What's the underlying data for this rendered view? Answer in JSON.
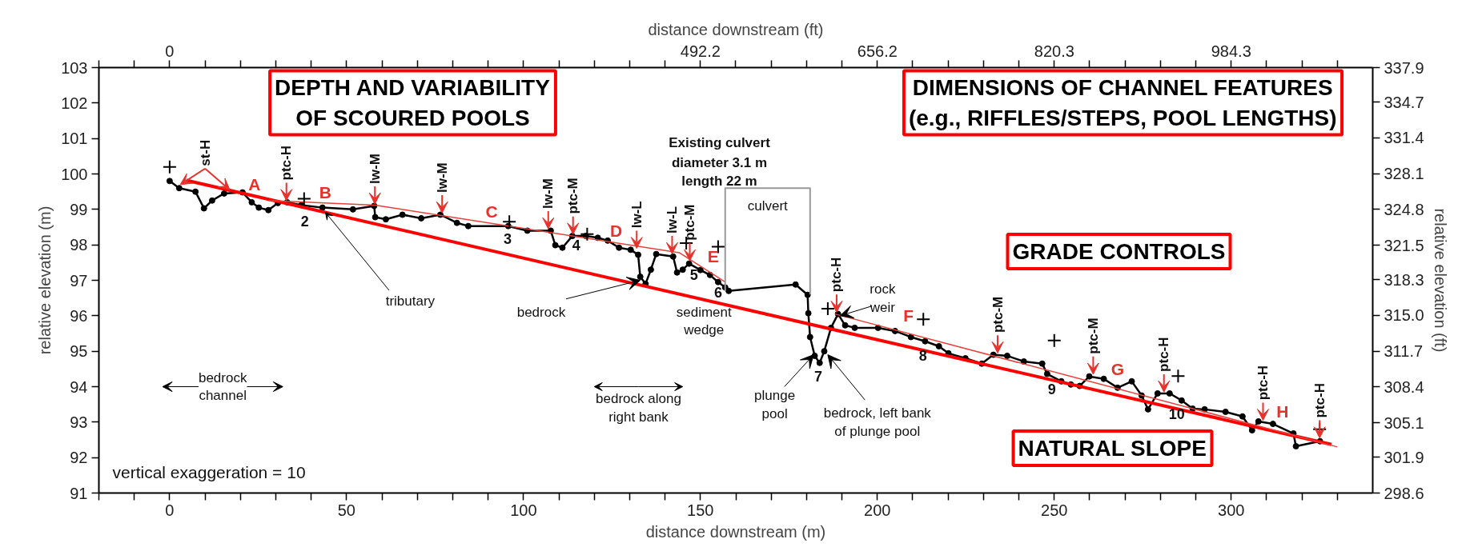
{
  "chart_data": {
    "type": "line",
    "xlabel": "distance downstream (m)",
    "x2label": "distance downstream (ft)",
    "ylabel": "relative elevation (m)",
    "y2label": "relative elevation (ft)",
    "xlim": [
      -20,
      340
    ],
    "ylim": [
      91,
      103
    ],
    "x2lim": [
      -65.6,
      1115.5
    ],
    "y2lim": [
      298.6,
      337.9
    ],
    "xticks": [
      {
        "value": -20,
        "label": null
      },
      {
        "value": -10,
        "label": null
      },
      0,
      {
        "value": 10,
        "label": null
      },
      {
        "value": 20,
        "label": null
      },
      {
        "value": 30,
        "label": null
      },
      {
        "value": 40,
        "label": null
      },
      50,
      {
        "value": 60,
        "label": null
      },
      {
        "value": 70,
        "label": null
      },
      {
        "value": 80,
        "label": null
      },
      {
        "value": 90,
        "label": null
      },
      100,
      {
        "value": 110,
        "label": null
      },
      {
        "value": 120,
        "label": null
      },
      {
        "value": 130,
        "label": null
      },
      {
        "value": 140,
        "label": null
      },
      150,
      {
        "value": 160,
        "label": null
      },
      {
        "value": 170,
        "label": null
      },
      {
        "value": 180,
        "label": null
      },
      {
        "value": 190,
        "label": null
      },
      200,
      {
        "value": 210,
        "label": null
      },
      {
        "value": 220,
        "label": null
      },
      {
        "value": 230,
        "label": null
      },
      {
        "value": 240,
        "label": null
      },
      250,
      {
        "value": 260,
        "label": null
      },
      {
        "value": 270,
        "label": null
      },
      {
        "value": 280,
        "label": null
      },
      {
        "value": 290,
        "label": null
      },
      300,
      {
        "value": 310,
        "label": null
      },
      {
        "value": 320,
        "label": null
      },
      {
        "value": 330,
        "label": null
      }
    ],
    "x2ticks": [
      {
        "value": -65.6,
        "label": null
      },
      {
        "value": -32.8,
        "label": null
      },
      0,
      {
        "value": 32.8,
        "label": null
      },
      {
        "value": 65.6,
        "label": null
      },
      {
        "value": 98.4,
        "label": null
      },
      {
        "value": 131.2,
        "label": null
      },
      {
        "value": 164.0,
        "label": null
      },
      {
        "value": 196.9,
        "label": null
      },
      {
        "value": 229.7,
        "label": null
      },
      {
        "value": 262.5,
        "label": null
      },
      {
        "value": 295.3,
        "label": null
      },
      {
        "value": 328.1,
        "label": null
      },
      {
        "value": 360.9,
        "label": null
      },
      {
        "value": 393.7,
        "label": null
      },
      {
        "value": 426.5,
        "label": null
      },
      {
        "value": 459.3,
        "label": null
      },
      492.2,
      {
        "value": 524.9,
        "label": null
      },
      {
        "value": 557.7,
        "label": null
      },
      {
        "value": 590.6,
        "label": null
      },
      {
        "value": 623.4,
        "label": null
      },
      656.2,
      {
        "value": 689.0,
        "label": null
      },
      {
        "value": 721.8,
        "label": null
      },
      {
        "value": 754.6,
        "label": null
      },
      {
        "value": 787.4,
        "label": null
      },
      820.3,
      {
        "value": 853.0,
        "label": null
      },
      {
        "value": 885.8,
        "label": null
      },
      {
        "value": 918.6,
        "label": null
      },
      {
        "value": 951.4,
        "label": null
      },
      984.3,
      {
        "value": 1017.1,
        "label": null
      },
      {
        "value": 1049.9,
        "label": null
      },
      {
        "value": 1082.7,
        "label": null
      }
    ],
    "yticks": [
      91,
      92,
      93,
      94,
      95,
      96,
      97,
      98,
      99,
      100,
      101,
      102,
      103
    ],
    "y2ticks": [
      298.6,
      301.9,
      305.1,
      308.4,
      311.7,
      {
        "value": 315,
        "label": "315.0"
      },
      318.3,
      321.5,
      324.8,
      328.1,
      331.4,
      334.7,
      337.9
    ],
    "grid": false,
    "series": [
      {
        "color": "#000000",
        "marker": "circle",
        "x": [
          0,
          2.7,
          7.3,
          9.7,
          12,
          15.4,
          20.6,
          23.2,
          25.2,
          27.9,
          30.6,
          33.2,
          37.2,
          43.2,
          51.8,
          57.8,
          58.1,
          61.1,
          65.8,
          71.1,
          76.5,
          81.2,
          84.4,
          95.7,
          101.1,
          107.7,
          109,
          111,
          113.8,
          117.6,
          121,
          123.8,
          127,
          130.3,
          132.4,
          133,
          134.5,
          136,
          137.5,
          142.3,
          143.4,
          145,
          146.8,
          150,
          152.7,
          155,
          157,
          158,
          176.9,
          180.3,
          180.5,
          181,
          182.3,
          183.7,
          185,
          186.9,
          188.9,
          190.9,
          193.6,
          200.2,
          205,
          209.5,
          213.5,
          217.4,
          220.1,
          224.9,
          229.5,
          232.8,
          236.7,
          241.4,
          246.6,
          248,
          252,
          254.7,
          257.2,
          259.9,
          264,
          267.9,
          271.9,
          274.7,
          276.5,
          279.2,
          282.6,
          286,
          289.1,
          292.5,
          298.4,
          303.2,
          305.9,
          307.7,
          311.8,
          317.6,
          318.3,
          325.1
        ],
        "values": [
          99.8,
          99.6,
          99.5,
          99.03,
          99.25,
          99.45,
          99.48,
          99.2,
          99.05,
          98.98,
          99.18,
          99.2,
          99.12,
          99.05,
          99.0,
          99.1,
          98.78,
          98.72,
          98.85,
          98.75,
          98.85,
          98.62,
          98.53,
          98.53,
          98.4,
          98.4,
          97.99,
          97.92,
          98.25,
          98.25,
          98.2,
          98.12,
          97.92,
          97.86,
          97.72,
          97.1,
          96.9,
          97.3,
          97.74,
          97.67,
          97.22,
          97.3,
          97.47,
          97.29,
          97.15,
          96.95,
          96.8,
          96.7,
          96.88,
          96.59,
          96.07,
          95.4,
          94.87,
          94.67,
          95.0,
          95.66,
          96.05,
          95.73,
          95.66,
          95.66,
          95.57,
          95.4,
          95.28,
          95.14,
          94.94,
          94.8,
          94.65,
          94.9,
          94.87,
          94.71,
          94.65,
          94.36,
          94.15,
          94.06,
          94.02,
          94.29,
          94.22,
          93.97,
          94.15,
          93.75,
          93.36,
          93.81,
          93.81,
          93.61,
          93.38,
          93.36,
          93.29,
          93.16,
          92.77,
          93.02,
          92.95,
          92.68,
          92.32,
          92.46
        ]
      },
      {
        "color": "#ff0000",
        "x": [
          4.7,
          328.3
        ],
        "values": [
          99.82,
          92.37
        ]
      },
      {
        "color": "#e8403a",
        "x": [
          28,
          58,
          144,
          157,
          170,
          188,
          330
        ],
        "values": [
          99.25,
          99.12,
          97.78,
          96.95,
          null,
          96.05,
          92.3
        ]
      },
      {
        "color": "#999999",
        "x": [
          157,
          157,
          181,
          181
        ],
        "values": [
          96.7,
          99.6,
          99.6,
          96.6
        ]
      },
      {
        "type": "scatter",
        "color": "#000000",
        "marker": "cross",
        "x": [
          0,
          38,
          96,
          118,
          146,
          155,
          186,
          213,
          250,
          285,
          325
        ],
        "values": [
          100.2,
          99.3,
          98.65,
          98.3,
          98.05,
          97.95,
          96.2,
          95.9,
          95.3,
          94.3,
          92.8
        ]
      }
    ],
    "annotations": [
      {
        "text": "st-H",
        "x": 10,
        "y": 99.6
      },
      {
        "text": "ptc-H",
        "x": 33,
        "y": 99.2
      },
      {
        "text": "lw-M",
        "x": 58,
        "y": 99.1
      },
      {
        "text": "lw-M",
        "x": 77,
        "y": 98.85
      },
      {
        "text": "lw-M",
        "x": 107,
        "y": 98.4
      },
      {
        "text": "ptc-M",
        "x": 114,
        "y": 98.25
      },
      {
        "text": "lw-L",
        "x": 132,
        "y": 97.85
      },
      {
        "text": "lw-L",
        "x": 142,
        "y": 97.7
      },
      {
        "text": "ptc-M",
        "x": 147,
        "y": 97.5
      },
      {
        "text": "ptc-H",
        "x": 188.5,
        "y": 96.05
      },
      {
        "text": "ptc-M",
        "x": 234,
        "y": 94.9
      },
      {
        "text": "ptc-M",
        "x": 261,
        "y": 94.3
      },
      {
        "text": "ptc-H",
        "x": 281,
        "y": 93.8
      },
      {
        "text": "ptc-H",
        "x": 309,
        "y": 93.0
      },
      {
        "text": "ptc-H",
        "x": 325,
        "y": 92.5
      },
      "A",
      "B",
      "C",
      "D",
      "E",
      "F",
      "G",
      "H",
      "2",
      "3",
      "4",
      "5",
      "6",
      "7",
      "8",
      "9",
      "10",
      {
        "text": "tributary",
        "x": 44,
        "y": 98.92
      },
      {
        "text": "bedrock",
        "x": 133,
        "y": 97.0
      },
      {
        "text": "sediment\nwedge",
        "x": 151,
        "y": 96.6
      },
      {
        "text": "plunge\npool",
        "x": 182,
        "y": 94.9
      },
      {
        "text": "bedrock, left bank\nof plunge pool",
        "x": 186,
        "y": 94.9
      },
      {
        "text": "rock\nweir",
        "x": 189.5,
        "y": 96.0
      },
      "bedrock\nchannel",
      "bedrock along\nright bank",
      "culvert",
      "Existing culvert",
      "diameter 3.1 m",
      "length 22 m",
      "vertical exaggeration = 10",
      "DEPTH AND VARIABILITY\nOF SCOURED POOLS",
      "DIMENSIONS OF CHANNEL FEATURES\n(e.g., RIFFLES/STEPS, POOL LENGTHS)",
      "GRADE CONTROLS",
      "NATURAL SLOPE"
    ]
  }
}
